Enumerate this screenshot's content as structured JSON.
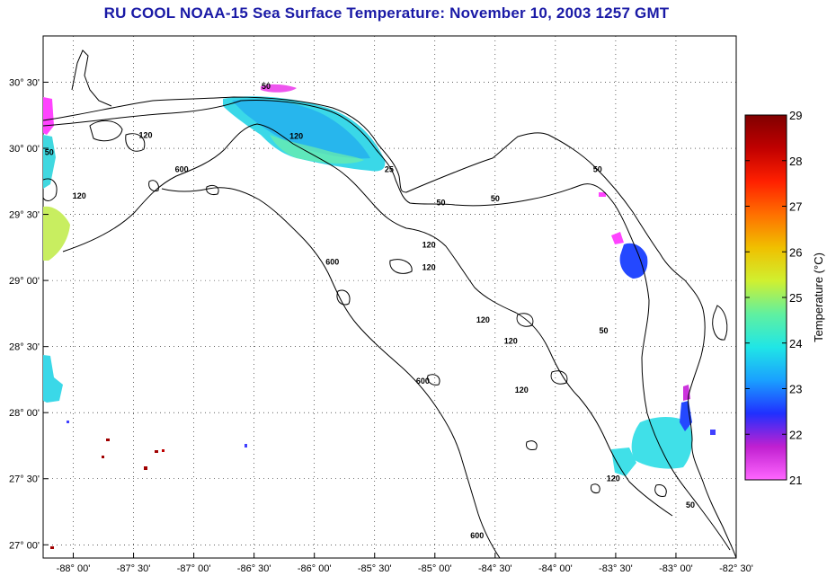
{
  "title": "RU COOL  NOAA-15  Sea Surface Temperature:  November 10, 2003 1257 GMT",
  "map": {
    "lon_range": [
      -88.25,
      -82.5
    ],
    "lat_range": [
      26.9,
      30.85
    ],
    "lat_ticks": [
      {
        "value": 30.5,
        "label": "30° 30'"
      },
      {
        "value": 30.0,
        "label": "30° 00'"
      },
      {
        "value": 29.5,
        "label": "29° 30'"
      },
      {
        "value": 29.0,
        "label": "29° 00'"
      },
      {
        "value": 28.5,
        "label": "28° 30'"
      },
      {
        "value": 28.0,
        "label": "28° 00'"
      },
      {
        "value": 27.5,
        "label": "27° 30'"
      },
      {
        "value": 27.0,
        "label": "27° 00'"
      }
    ],
    "lon_ticks": [
      {
        "value": -88.0,
        "label": "-88° 00'"
      },
      {
        "value": -87.5,
        "label": "-87° 30'"
      },
      {
        "value": -87.0,
        "label": "-87° 00'"
      },
      {
        "value": -86.5,
        "label": "-86° 30'"
      },
      {
        "value": -86.0,
        "label": "-86° 00'"
      },
      {
        "value": -85.5,
        "label": "-85° 30'"
      },
      {
        "value": -85.0,
        "label": "-85° 00'"
      },
      {
        "value": -84.5,
        "label": "-84° 30'"
      },
      {
        "value": -84.0,
        "label": "-84° 00'"
      },
      {
        "value": -83.5,
        "label": "-83° 30'"
      },
      {
        "value": -83.0,
        "label": "-83° 00'"
      },
      {
        "value": -82.5,
        "label": "-82° 30'"
      }
    ],
    "grid": "dotted",
    "contour_labels": [
      {
        "text": "50",
        "lon": -86.4,
        "lat": 30.45
      },
      {
        "text": "120",
        "lon": -87.4,
        "lat": 30.08
      },
      {
        "text": "120",
        "lon": -86.15,
        "lat": 30.07
      },
      {
        "text": "600",
        "lon": -87.1,
        "lat": 29.82
      },
      {
        "text": "120",
        "lon": -87.95,
        "lat": 29.62
      },
      {
        "text": "50",
        "lon": -88.2,
        "lat": 29.95
      },
      {
        "text": "25",
        "lon": -85.38,
        "lat": 29.82
      },
      {
        "text": "50",
        "lon": -84.95,
        "lat": 29.57
      },
      {
        "text": "50",
        "lon": -84.5,
        "lat": 29.6
      },
      {
        "text": "50",
        "lon": -83.65,
        "lat": 29.82
      },
      {
        "text": "120",
        "lon": -85.05,
        "lat": 29.25
      },
      {
        "text": "120",
        "lon": -85.05,
        "lat": 29.08
      },
      {
        "text": "600",
        "lon": -85.85,
        "lat": 29.12
      },
      {
        "text": "120",
        "lon": -84.6,
        "lat": 28.68
      },
      {
        "text": "120",
        "lon": -84.37,
        "lat": 28.52
      },
      {
        "text": "50",
        "lon": -83.6,
        "lat": 28.6
      },
      {
        "text": "600",
        "lon": -85.1,
        "lat": 28.22
      },
      {
        "text": "120",
        "lon": -84.28,
        "lat": 28.15
      },
      {
        "text": "120",
        "lon": -83.52,
        "lat": 27.48
      },
      {
        "text": "50",
        "lon": -82.88,
        "lat": 27.28
      },
      {
        "text": "600",
        "lon": -84.65,
        "lat": 27.05
      }
    ]
  },
  "colorbar": {
    "title": "Temperature (°C)",
    "min": 21,
    "max": 29,
    "tick_labels": [
      "29",
      "28",
      "27",
      "26",
      "25",
      "24",
      "23",
      "22",
      "21"
    ],
    "stops": [
      "#ff66ff",
      "#c020d0",
      "#2030ff",
      "#1aa0ff",
      "#20e6e6",
      "#60f0a0",
      "#d0f030",
      "#f0c000",
      "#ff7000",
      "#ff2000",
      "#c00000",
      "#800000"
    ]
  }
}
